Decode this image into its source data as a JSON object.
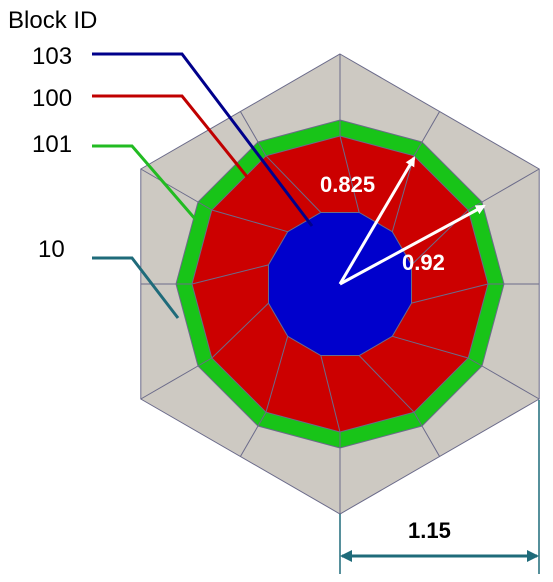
{
  "legend": {
    "title": "Block ID",
    "items": [
      {
        "label": "103",
        "color": "#00008b"
      },
      {
        "label": "100",
        "color": "#c00000"
      },
      {
        "label": "101",
        "color": "#22bb22"
      },
      {
        "label": "10",
        "color": "#1f6b7a"
      }
    ]
  },
  "regions": {
    "outer_hex_color": "#cdc9c2",
    "green_ring_color": "#18c418",
    "red_ring_color": "#cc0000",
    "blue_core_color": "#0000cc",
    "mesh_line_color": "#6b6b8a"
  },
  "dimensions": {
    "inner_radius_label": "0.825",
    "outer_radius_label": "0.92",
    "flat_label": "1.15",
    "arrow_color_white": "#ffffff",
    "dim_line_color": "#1f6b7a"
  }
}
